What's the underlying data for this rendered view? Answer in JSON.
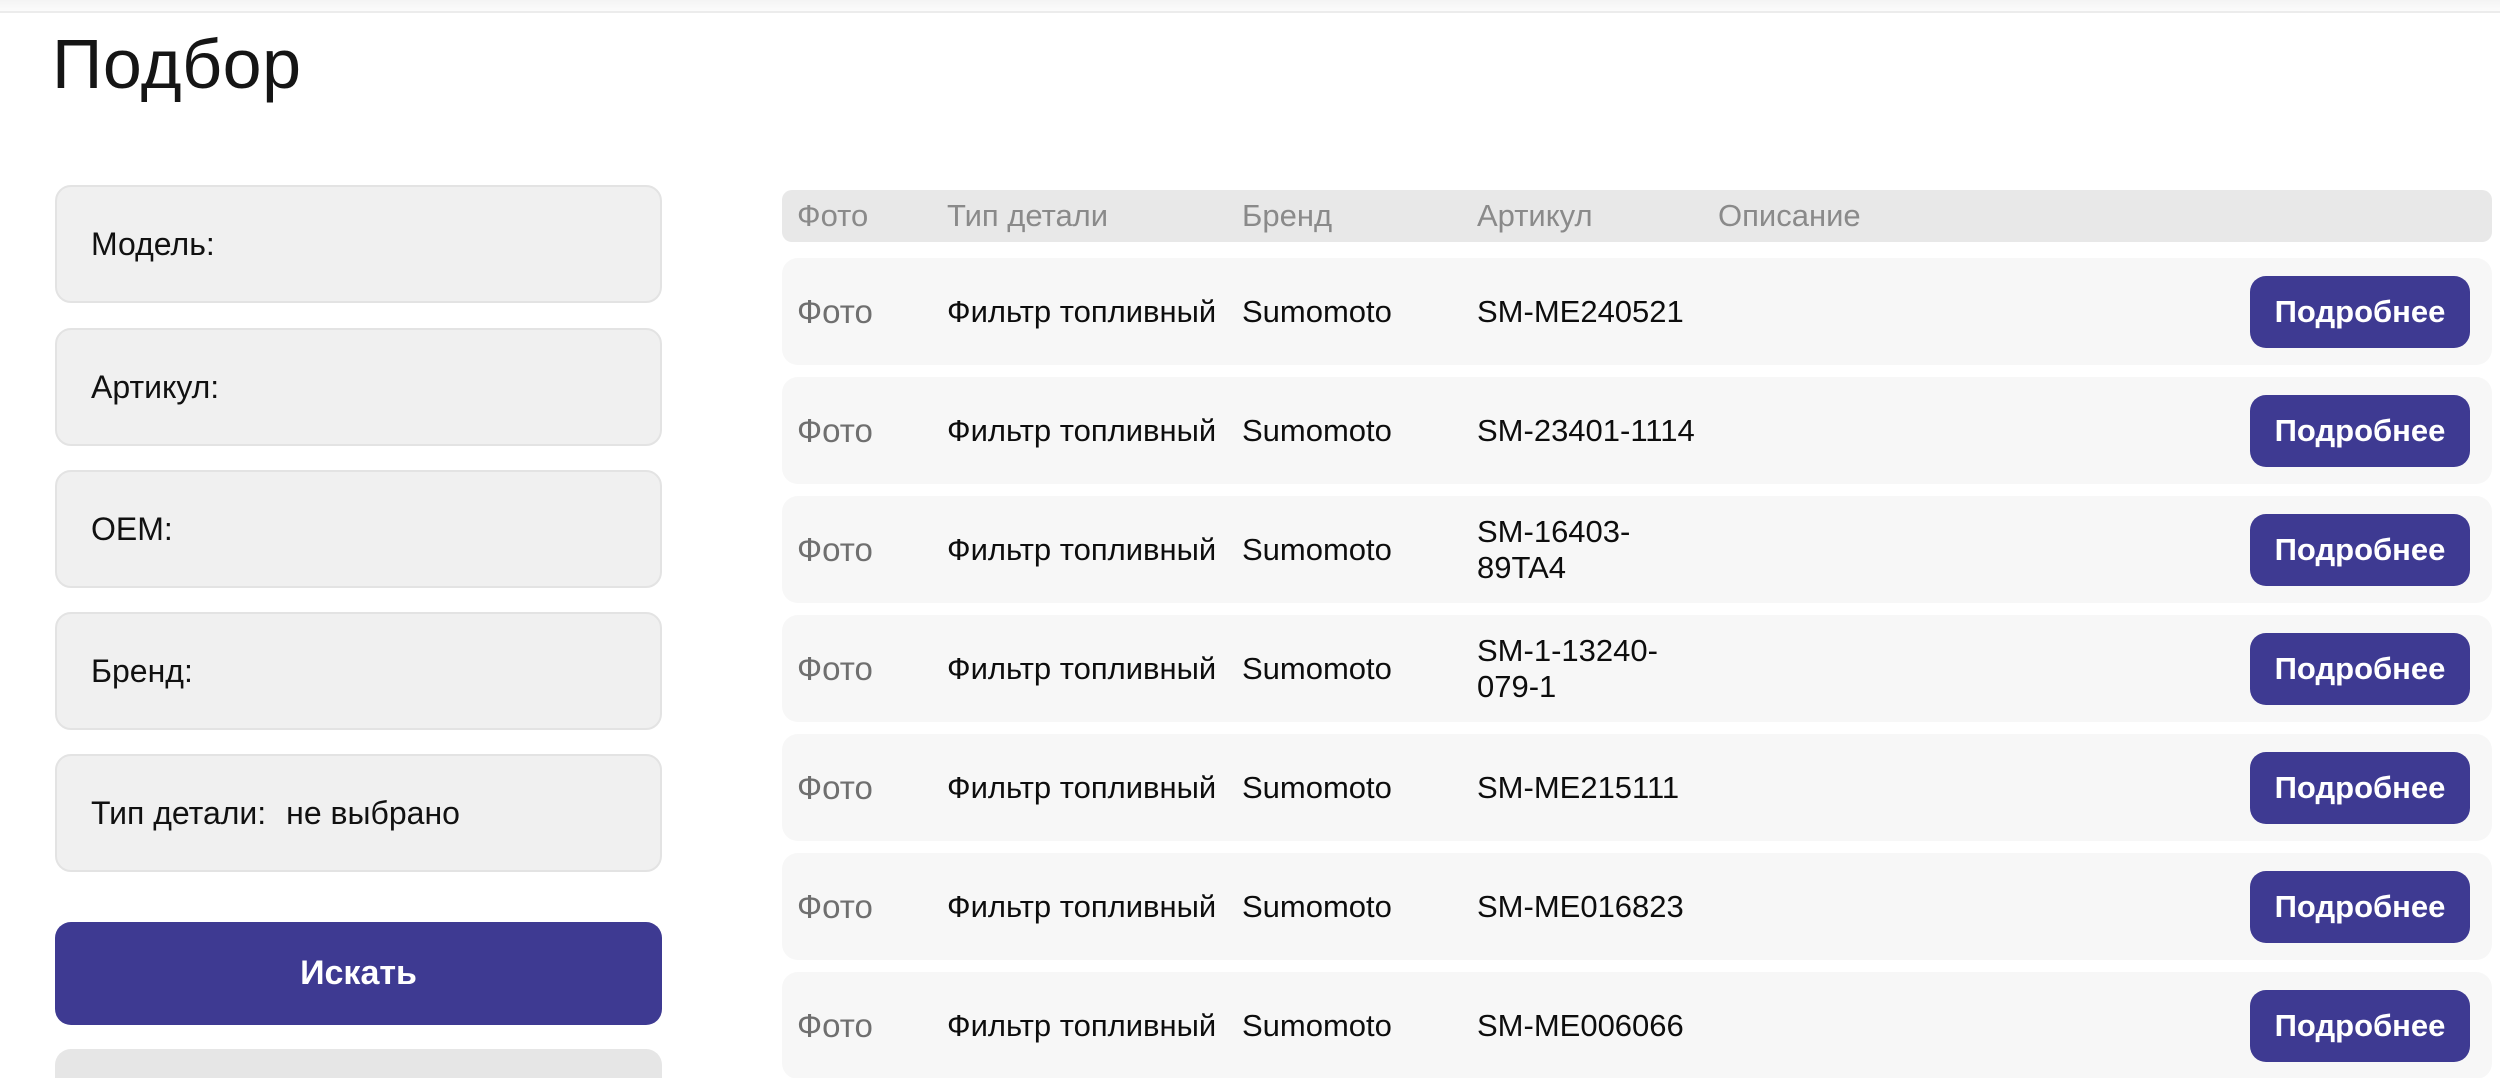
{
  "page": {
    "title": "Подбор"
  },
  "colors": {
    "accent_purple": "#3e3a92",
    "filter_background": "#f0f0f0",
    "table_header_background": "#e8e8e8",
    "row_background": "#f7f7f7"
  },
  "filters": {
    "model_label": "Модель:",
    "sku_label": "Артикул:",
    "oem_label": "OEM:",
    "brand_label": "Бренд:",
    "part_type_label": "Тип детали:",
    "part_type_value": "не выбрано",
    "search_button_label": "Искать"
  },
  "table": {
    "headers": [
      "Фото",
      "Тип детали",
      "Бренд",
      "Артикул",
      "Описание"
    ],
    "details_button_label": "Подробнее",
    "rows": [
      {
        "photo_label": "Фото",
        "part_type": "Фильтр топливный",
        "brand": "Sumomoto",
        "sku": "SM-ME240521",
        "description": ""
      },
      {
        "photo_label": "Фото",
        "part_type": "Фильтр топливный",
        "brand": "Sumomoto",
        "sku": "SM-23401-1114",
        "description": ""
      },
      {
        "photo_label": "Фото",
        "part_type": "Фильтр топливный",
        "brand": "Sumomoto",
        "sku": "SM-16403-89TA4",
        "description": ""
      },
      {
        "photo_label": "Фото",
        "part_type": "Фильтр топливный",
        "brand": "Sumomoto",
        "sku": "SM-1-13240-079-1",
        "description": ""
      },
      {
        "photo_label": "Фото",
        "part_type": "Фильтр топливный",
        "brand": "Sumomoto",
        "sku": "SM-ME215111",
        "description": ""
      },
      {
        "photo_label": "Фото",
        "part_type": "Фильтр топливный",
        "brand": "Sumomoto",
        "sku": "SM-ME016823",
        "description": ""
      },
      {
        "photo_label": "Фото",
        "part_type": "Фильтр топливный",
        "brand": "Sumomoto",
        "sku": "SM-ME006066",
        "description": ""
      }
    ]
  }
}
